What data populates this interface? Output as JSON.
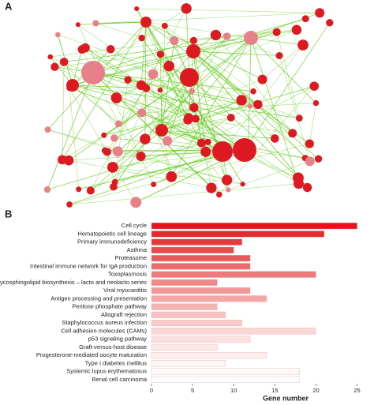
{
  "panel_labels": {
    "a": "A",
    "b": "B"
  },
  "chart_data": {
    "type": "hbar",
    "categories": [
      "Cell cycle",
      "Hematopoietic cell lineage",
      "Primary immunodeficiency",
      "Asthma",
      "Proteasome",
      "Intestinal immune network for IgA production",
      "Toxoplasmosis",
      "Glycosphingolipid biosynthesis – lacto and neolacto series",
      "Viral myocarditis",
      "Antigen processing and presentation",
      "Pentose phosphate pathway",
      "Allograft rejection",
      "Staphylococcus aureus infection",
      "Cell adhesion molecules (CAMs)",
      "p53 signaling pathway",
      "Graft-versus-host disease",
      "Progesterone-mediated oocyte maturation",
      "Type I diabetes mellitus",
      "Systemic lupus erythematosus",
      "Renal cell carcinoma"
    ],
    "values": [
      25,
      21,
      11,
      10,
      12,
      12,
      20,
      8,
      12,
      14,
      8,
      9,
      11,
      20,
      12,
      8,
      14,
      9,
      18,
      18
    ],
    "colors": [
      "#e3141c",
      "#e52a2f",
      "#e6393d",
      "#e84a4e",
      "#ea5a5d",
      "#ec6a6c",
      "#ee7a7b",
      "#f0898a",
      "#f29899",
      "#f4a7a7",
      "#f5b4b4",
      "#f7c1c1",
      "#f8cccc",
      "#fad6d6",
      "#fbe0e0",
      "#fce8e8",
      "#fdefef",
      "#fef4f4",
      "#fff9f9",
      "#ffffff"
    ],
    "xlim": [
      0,
      26
    ],
    "xticks": [
      0,
      5,
      10,
      15,
      20,
      25
    ],
    "xlabel": "Gene number"
  }
}
